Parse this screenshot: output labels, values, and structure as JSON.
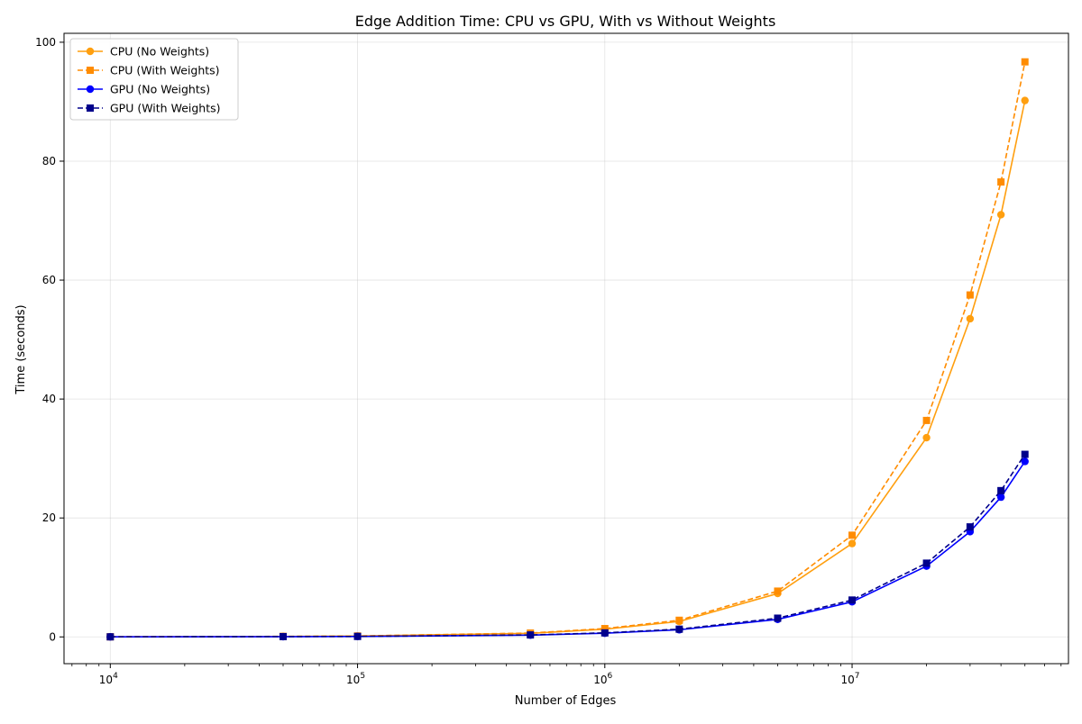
{
  "chart_data": {
    "type": "line",
    "title": "Edge Addition Time: CPU vs GPU, With vs Without Weights",
    "xlabel": "Number of Edges",
    "ylabel": "Time (seconds)",
    "xscale": "log",
    "xlim": [
      6500,
      75000000
    ],
    "ylim": [
      -4.5,
      101.5
    ],
    "grid": true,
    "legend_position": "top-left",
    "x_ticks": [
      {
        "base": "10",
        "exp": "4",
        "value": 10000
      },
      {
        "base": "10",
        "exp": "5",
        "value": 100000
      },
      {
        "base": "10",
        "exp": "6",
        "value": 1000000
      },
      {
        "base": "10",
        "exp": "7",
        "value": 10000000
      }
    ],
    "y_ticks": [
      0,
      20,
      40,
      60,
      80,
      100
    ],
    "x": [
      10000,
      50000,
      100000,
      500000,
      1000000,
      2000000,
      5000000,
      10000000,
      20000000,
      30000000,
      40000000,
      50000000
    ],
    "series": [
      {
        "name": "CPU (No Weights)",
        "color": "#ff9f0f",
        "dash": "solid",
        "marker": "circle",
        "values": [
          0.02,
          0.08,
          0.15,
          0.6,
          1.3,
          2.6,
          7.3,
          15.7,
          33.5,
          53.5,
          71.0,
          90.2
        ]
      },
      {
        "name": "CPU (With Weights)",
        "color": "#ff8c00",
        "dash": "dashed",
        "marker": "square",
        "values": [
          0.02,
          0.09,
          0.16,
          0.65,
          1.4,
          2.8,
          7.7,
          17.1,
          36.4,
          57.5,
          76.5,
          96.7
        ]
      },
      {
        "name": "GPU (No Weights)",
        "color": "#0000ff",
        "dash": "solid",
        "marker": "circle",
        "values": [
          0.01,
          0.04,
          0.07,
          0.3,
          0.62,
          1.2,
          2.95,
          5.9,
          11.9,
          17.7,
          23.5,
          29.5
        ]
      },
      {
        "name": "GPU (With Weights)",
        "color": "#00008b",
        "dash": "dashed",
        "marker": "square",
        "values": [
          0.01,
          0.05,
          0.08,
          0.33,
          0.68,
          1.3,
          3.15,
          6.2,
          12.4,
          18.5,
          24.6,
          30.7
        ]
      }
    ]
  }
}
